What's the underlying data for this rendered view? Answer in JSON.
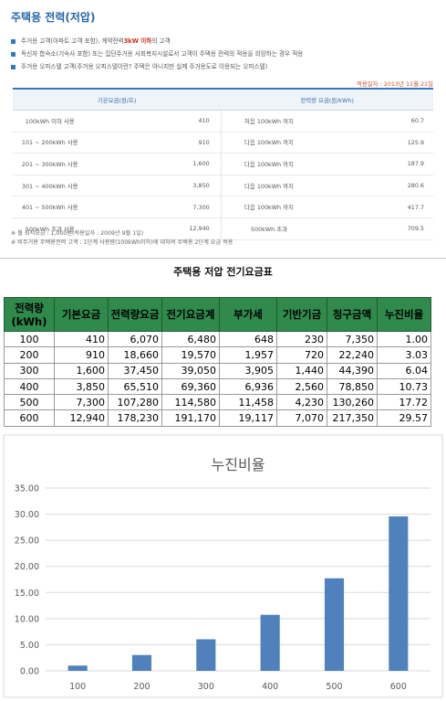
{
  "notice": {
    "title": "주택용 전력(저압)",
    "bullets": [
      {
        "pre": "주거용 고객(아파트 고객 포함), 계약전력 ",
        "highlight": "3kW 이하",
        "post": "의 고객"
      },
      {
        "pre": "독신자 합숙소(기숙사 포함) 또는 집단주거용 사회복지시설로서 고객이 주택용 전력의 적용을 희망하는 경우 적용",
        "highlight": "",
        "post": ""
      },
      {
        "pre": "주거용 오피스텔 고객(주거용 오피스텔이란? 주택은 아니지만 실제 주거용도로 이용되는 오피스텔)",
        "highlight": "",
        "post": ""
      }
    ],
    "apply_date": "적용일자 : 2013년 11월 21일",
    "headers": [
      "기본요금(원/호)",
      "전력량 요금(원/kWh)"
    ],
    "rows": [
      {
        "range": "100kWh 이하 사용",
        "base": "410",
        "tier": "처음 100kWh 까지",
        "rate": "60.7"
      },
      {
        "range": "101 ~ 200kWh 사용",
        "base": "910",
        "tier": "다음 100kWh 까지",
        "rate": "125.9"
      },
      {
        "range": "201 ~ 300kWh 사용",
        "base": "1,600",
        "tier": "다음 100kWh 까지",
        "rate": "187.9"
      },
      {
        "range": "301 ~ 400kWh 사용",
        "base": "3,850",
        "tier": "다음 100kWh 까지",
        "rate": "280.6"
      },
      {
        "range": "401 ~ 500kWh 사용",
        "base": "7,300",
        "tier": "다음 100kWh 까지",
        "rate": "417.7"
      },
      {
        "range": "500kWh 초과 사용",
        "base": "12,940",
        "tier": "500kWh 초과",
        "rate": "709.5"
      }
    ],
    "notes": [
      "※ 월 최저요금 : 1,000원(적용일자 : 2009년 9월 1일)",
      "※ 비주거용 주택용전력 고객 : 1단계 사용량(100kWh이하)에 대하여 주택용 2단계 요금 적용"
    ]
  },
  "sheet": {
    "title": "주택용 저압 전기요금표",
    "header_first_line1": "전력량",
    "header_first_line2": "(kWh)",
    "headers": [
      "기본요금",
      "전력량요금",
      "전기요금계",
      "부가세",
      "기반기금",
      "청구금액",
      "누진비율"
    ],
    "rows": [
      [
        "100",
        "410",
        "6,070",
        "6,480",
        "648",
        "230",
        "7,350",
        "1.00"
      ],
      [
        "200",
        "910",
        "18,660",
        "19,570",
        "1,957",
        "720",
        "22,240",
        "3.03"
      ],
      [
        "300",
        "1,600",
        "37,450",
        "39,050",
        "3,905",
        "1,440",
        "44,390",
        "6.04"
      ],
      [
        "400",
        "3,850",
        "65,510",
        "69,360",
        "6,936",
        "2,560",
        "78,850",
        "10.73"
      ],
      [
        "500",
        "7,300",
        "107,280",
        "114,580",
        "11,458",
        "4,230",
        "130,260",
        "17.72"
      ],
      [
        "600",
        "12,940",
        "178,230",
        "191,170",
        "19,117",
        "7,070",
        "217,350",
        "29.57"
      ]
    ],
    "header_color": "#2f8a4c"
  },
  "chart_data": {
    "type": "bar",
    "title": "누진비율",
    "categories": [
      "100",
      "200",
      "300",
      "400",
      "500",
      "600"
    ],
    "values": [
      1.0,
      3.03,
      6.04,
      10.73,
      17.72,
      29.57
    ],
    "ylim": [
      0,
      35
    ],
    "yticks": [
      "0.00",
      "5.00",
      "10.00",
      "15.00",
      "20.00",
      "25.00",
      "30.00",
      "35.00"
    ],
    "grid": true,
    "bar_color": "#4f81bd",
    "xlabel": "",
    "ylabel": ""
  }
}
